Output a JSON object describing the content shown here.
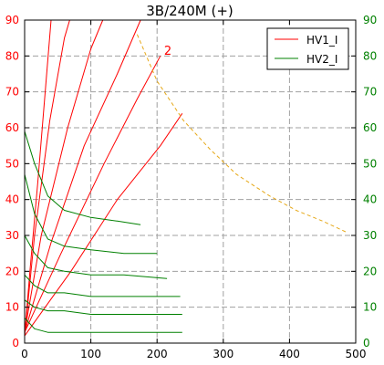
{
  "chart_data": {
    "type": "line",
    "title": "3B/240M (+)",
    "xlabel": "",
    "ylabel": "",
    "xlim": [
      0,
      500
    ],
    "ylim": [
      0,
      90
    ],
    "x_ticks": [
      0,
      100,
      200,
      300,
      400,
      500
    ],
    "y_ticks": [
      0,
      10,
      20,
      30,
      40,
      50,
      60,
      70,
      80,
      90
    ],
    "grid": true,
    "grid_style": "dashed",
    "right_axis": {
      "ticks": [
        0,
        10,
        20,
        30,
        40,
        50,
        60,
        70,
        80,
        90
      ],
      "color": "#008000"
    },
    "legend": {
      "placement": "top-right",
      "entries": [
        {
          "label": "HV1_I",
          "color": "#ff0000"
        },
        {
          "label": "HV2_I",
          "color": "#008000"
        }
      ]
    },
    "annotations": [
      {
        "text": "2",
        "x": 217,
        "y": 81,
        "color": "#ff0000"
      }
    ],
    "colors": {
      "hv1": "#ff0000",
      "hv2": "#008000",
      "limit": "#e6a817",
      "axes": "#000000"
    },
    "series": [
      {
        "group": "HV1_I",
        "x": [
          0,
          8,
          20,
          32,
          40
        ],
        "y": [
          2,
          20,
          45,
          72,
          90
        ]
      },
      {
        "group": "HV1_I",
        "x": [
          0,
          15,
          38,
          60,
          68
        ],
        "y": [
          2,
          30,
          62,
          85,
          90
        ]
      },
      {
        "group": "HV1_I",
        "x": [
          0,
          25,
          65,
          100,
          118
        ],
        "y": [
          3,
          30,
          60,
          82,
          90
        ]
      },
      {
        "group": "HV1_I",
        "x": [
          0,
          40,
          90,
          140,
          175
        ],
        "y": [
          3,
          28,
          55,
          75,
          90
        ]
      },
      {
        "group": "HV1_I",
        "x": [
          0,
          55,
          120,
          170,
          205
        ],
        "y": [
          3,
          25,
          50,
          68,
          80
        ]
      },
      {
        "group": "HV1_I",
        "x": [
          0,
          70,
          140,
          205,
          238
        ],
        "y": [
          2,
          20,
          40,
          55,
          64
        ]
      },
      {
        "group": "HV2_I",
        "x": [
          0,
          15,
          35,
          60,
          100,
          140,
          175
        ],
        "y": [
          59,
          50,
          41,
          37,
          35,
          34,
          33
        ]
      },
      {
        "group": "HV2_I",
        "x": [
          0,
          15,
          35,
          60,
          100,
          150,
          200
        ],
        "y": [
          47,
          36,
          29,
          27,
          26,
          25,
          25
        ]
      },
      {
        "group": "HV2_I",
        "x": [
          0,
          15,
          35,
          60,
          100,
          150,
          215
        ],
        "y": [
          30,
          25,
          21,
          20,
          19,
          19,
          18
        ]
      },
      {
        "group": "HV2_I",
        "x": [
          0,
          15,
          35,
          60,
          100,
          150,
          235
        ],
        "y": [
          19,
          16,
          14,
          14,
          13,
          13,
          13
        ]
      },
      {
        "group": "HV2_I",
        "x": [
          0,
          15,
          35,
          60,
          100,
          150,
          238
        ],
        "y": [
          12,
          10,
          9,
          9,
          8,
          8,
          8
        ]
      },
      {
        "group": "HV2_I",
        "x": [
          0,
          15,
          35,
          60,
          100,
          150,
          238
        ],
        "y": [
          7,
          4,
          3,
          3,
          3,
          3,
          3
        ]
      },
      {
        "group": "limit",
        "x": [
          170,
          200,
          240,
          280,
          320,
          370,
          410,
          450,
          485
        ],
        "y": [
          86,
          73,
          62,
          54,
          47,
          41,
          37,
          34,
          31
        ]
      }
    ]
  }
}
